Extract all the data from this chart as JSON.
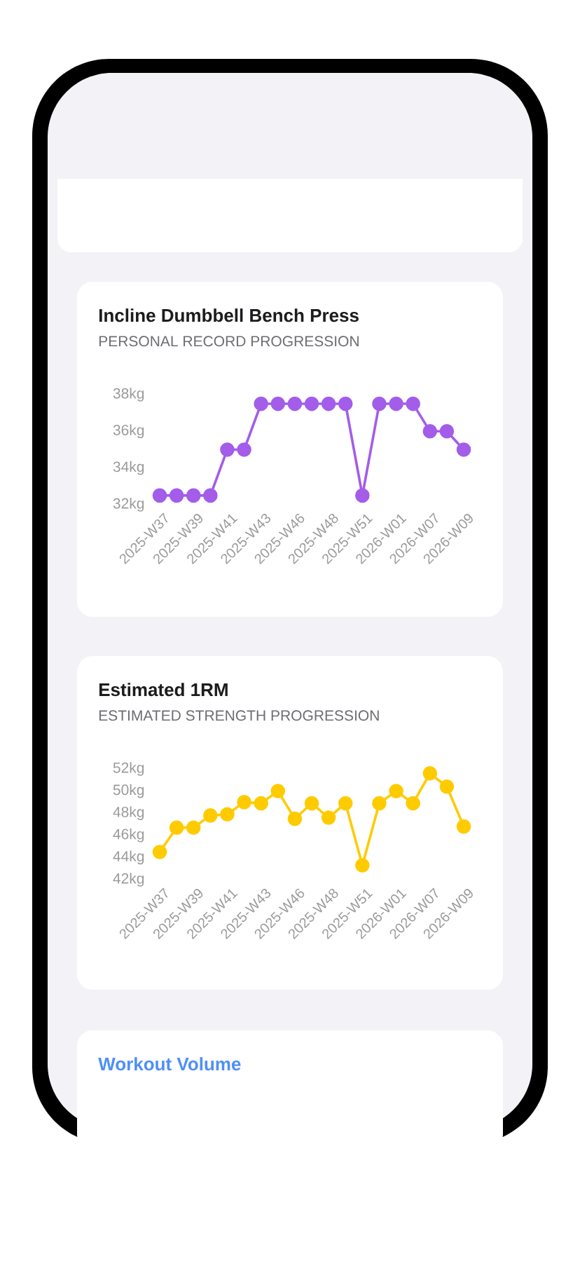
{
  "chart_data": [
    {
      "type": "line",
      "title": "Incline Dumbbell Bench Press",
      "subtitle": "PERSONAL RECORD PROGRESSION",
      "categories": [
        "2025-W37",
        null,
        "2025-W39",
        null,
        "2025-W41",
        null,
        "2025-W43",
        null,
        "2025-W46",
        null,
        "2025-W48",
        null,
        "2025-W51",
        null,
        "2026-W01",
        null,
        "2026-W07",
        null,
        "2026-W09"
      ],
      "values": [
        32.5,
        32.5,
        32.5,
        32.5,
        35,
        35,
        37.5,
        37.5,
        37.5,
        37.5,
        37.5,
        37.5,
        32.5,
        37.5,
        37.5,
        37.5,
        36,
        36,
        35
      ],
      "color": "#a35de9",
      "marker": "circle",
      "line_style": "solid",
      "ylim": [
        32,
        38
      ],
      "yticks": [
        {
          "value": 32,
          "label": "32kg"
        },
        {
          "value": 34,
          "label": "34kg"
        },
        {
          "value": 36,
          "label": "36kg"
        },
        {
          "value": 38,
          "label": "38kg"
        }
      ]
    },
    {
      "type": "line",
      "title": "Estimated 1RM",
      "subtitle": "ESTIMATED STRENGTH PROGRESSION",
      "categories": [
        "2025-W37",
        null,
        "2025-W39",
        null,
        "2025-W41",
        null,
        "2025-W43",
        null,
        "2025-W46",
        null,
        "2025-W48",
        null,
        "2025-W51",
        null,
        "2026-W01",
        null,
        "2026-W07",
        null,
        "2026-W09"
      ],
      "values": [
        44.5,
        46.7,
        46.7,
        47.8,
        47.9,
        49.0,
        48.9,
        50.0,
        47.5,
        48.9,
        47.6,
        48.9,
        43.3,
        48.9,
        50.0,
        48.9,
        51.6,
        50.4,
        46.8
      ],
      "color": "#fecb00",
      "marker": "circle",
      "line_style": "solid",
      "ylim": [
        42,
        52
      ],
      "yticks": [
        {
          "value": 42,
          "label": "42kg"
        },
        {
          "value": 44,
          "label": "44kg"
        },
        {
          "value": 46,
          "label": "46kg"
        },
        {
          "value": 48,
          "label": "48kg"
        },
        {
          "value": 50,
          "label": "50kg"
        },
        {
          "value": 52,
          "label": "52kg"
        }
      ]
    },
    {
      "type": "other",
      "title": "Workout Volume"
    }
  ]
}
